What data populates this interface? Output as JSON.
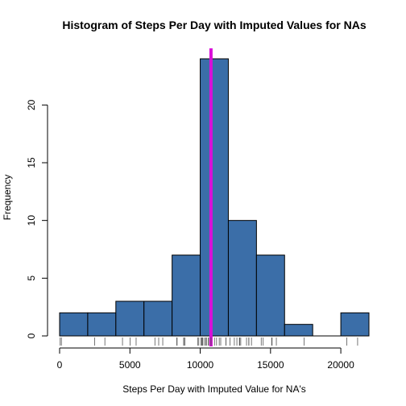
{
  "chart_data": {
    "type": "bar",
    "title": "Histogram of Steps Per Day with Imputed Values for NAs",
    "xlabel": "Steps Per Day with Imputed Value for NA's",
    "ylabel": "Frequency",
    "bin_edges": [
      0,
      2000,
      4000,
      6000,
      8000,
      10000,
      12000,
      14000,
      16000,
      18000,
      20000,
      22000
    ],
    "values": [
      2,
      2,
      3,
      3,
      7,
      24,
      10,
      7,
      1,
      0,
      2
    ],
    "xlim": [
      0,
      22000
    ],
    "ylim": [
      0,
      24
    ],
    "x_ticks": [
      0,
      5000,
      10000,
      15000,
      20000
    ],
    "y_ticks": [
      0,
      5,
      10,
      15,
      20
    ],
    "mean_line": 10766,
    "rug": [
      41,
      126,
      2492,
      3219,
      4472,
      5018,
      5441,
      6778,
      7047,
      7336,
      8334,
      8355,
      8821,
      8841,
      8918,
      9819,
      9900,
      10056,
      10119,
      10139,
      10183,
      10304,
      10395,
      10439,
      10571,
      10600,
      10765,
      10766,
      11015,
      11162,
      11352,
      11458,
      11829,
      11834,
      12116,
      12426,
      12608,
      12787,
      12811,
      12883,
      13294,
      13452,
      13460,
      13646,
      14339,
      14478,
      15084,
      15098,
      15110,
      15414,
      17382,
      20427,
      21194
    ],
    "bar_color": "#3B6EA8",
    "mean_line_color": "#D90FD9",
    "grid": false,
    "legend": "none"
  }
}
